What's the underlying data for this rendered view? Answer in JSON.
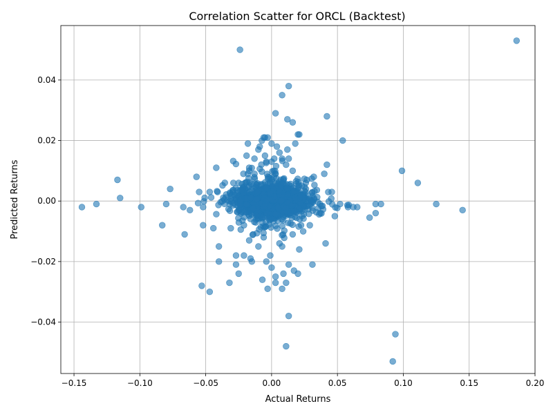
{
  "chart_data": {
    "type": "scatter",
    "title": "Correlation Scatter for ORCL (Backtest)",
    "xlabel": "Actual Returns",
    "ylabel": "Predicted Returns",
    "xlim": [
      -0.16,
      0.2
    ],
    "ylim": [
      -0.057,
      0.058
    ],
    "grid": true,
    "marker_color": "#1f77b4",
    "marker_alpha": 0.6,
    "x_ticks": [
      {
        "value": -0.15,
        "label": "−0.15"
      },
      {
        "value": -0.1,
        "label": "−0.10"
      },
      {
        "value": -0.05,
        "label": "−0.05"
      },
      {
        "value": 0.0,
        "label": "0.00"
      },
      {
        "value": 0.05,
        "label": "0.05"
      },
      {
        "value": 0.1,
        "label": "0.10"
      },
      {
        "value": 0.15,
        "label": "0.15"
      },
      {
        "value": 0.2,
        "label": "0.20"
      }
    ],
    "y_ticks": [
      {
        "value": -0.04,
        "label": "−0.04"
      },
      {
        "value": -0.02,
        "label": "−0.02"
      },
      {
        "value": 0.0,
        "label": "0.00"
      },
      {
        "value": 0.02,
        "label": "0.02"
      },
      {
        "value": 0.04,
        "label": "0.04"
      }
    ],
    "points": [
      [
        -0.024,
        0.05
      ],
      [
        0.186,
        0.053
      ],
      [
        0.013,
        0.038
      ],
      [
        0.008,
        0.035
      ],
      [
        0.003,
        0.029
      ],
      [
        0.042,
        0.028
      ],
      [
        0.012,
        0.027
      ],
      [
        0.016,
        0.026
      ],
      [
        0.02,
        0.022
      ],
      [
        0.021,
        0.022
      ],
      [
        -0.006,
        0.021
      ],
      [
        -0.005,
        0.021
      ],
      [
        -0.003,
        0.021
      ],
      [
        0.054,
        0.02
      ],
      [
        -0.018,
        0.019
      ],
      [
        0.0,
        0.019
      ],
      [
        0.018,
        0.019
      ],
      [
        -0.009,
        0.018
      ],
      [
        -0.01,
        0.017
      ],
      [
        0.004,
        0.018
      ],
      [
        0.006,
        0.016
      ],
      [
        0.012,
        0.017
      ],
      [
        -0.019,
        0.015
      ],
      [
        -0.005,
        0.015
      ],
      [
        0.002,
        0.014
      ],
      [
        0.008,
        0.014
      ],
      [
        0.013,
        0.014
      ],
      [
        -0.013,
        0.014
      ],
      [
        -0.004,
        0.013
      ],
      [
        0.0,
        0.013
      ],
      [
        0.011,
        0.012
      ],
      [
        0.042,
        0.012
      ],
      [
        -0.042,
        0.011
      ],
      [
        -0.017,
        0.011
      ],
      [
        -0.017,
        0.01
      ],
      [
        0.016,
        0.01
      ],
      [
        0.099,
        0.01
      ],
      [
        -0.018,
        0.009
      ],
      [
        -0.013,
        0.009
      ],
      [
        0.04,
        0.009
      ],
      [
        -0.057,
        0.008
      ],
      [
        0.032,
        0.008
      ],
      [
        0.003,
        0.009
      ],
      [
        -0.117,
        0.007
      ],
      [
        0.111,
        0.006
      ],
      [
        -0.029,
        0.006
      ],
      [
        -0.025,
        0.006
      ],
      [
        0.026,
        0.006
      ],
      [
        -0.077,
        0.004
      ],
      [
        -0.041,
        0.003
      ],
      [
        -0.047,
        0.003
      ],
      [
        -0.055,
        0.003
      ],
      [
        -0.115,
        0.001
      ],
      [
        -0.133,
        -0.001
      ],
      [
        -0.144,
        -0.002
      ],
      [
        -0.099,
        -0.002
      ],
      [
        -0.08,
        -0.001
      ],
      [
        -0.067,
        -0.002
      ],
      [
        -0.062,
        -0.003
      ],
      [
        -0.052,
        -0.002
      ],
      [
        0.052,
        -0.001
      ],
      [
        0.058,
        -0.002
      ],
      [
        0.062,
        -0.002
      ],
      [
        0.065,
        -0.002
      ],
      [
        0.079,
        -0.001
      ],
      [
        0.083,
        -0.001
      ],
      [
        0.079,
        -0.004
      ],
      [
        0.125,
        -0.001
      ],
      [
        0.145,
        -0.003
      ],
      [
        0.048,
        -0.005
      ],
      [
        0.037,
        -0.004
      ],
      [
        -0.083,
        -0.008
      ],
      [
        -0.052,
        -0.008
      ],
      [
        -0.066,
        -0.011
      ],
      [
        -0.04,
        -0.015
      ],
      [
        0.041,
        -0.014
      ],
      [
        -0.04,
        -0.02
      ],
      [
        -0.027,
        -0.018
      ],
      [
        -0.021,
        -0.018
      ],
      [
        -0.016,
        -0.019
      ],
      [
        -0.015,
        -0.02
      ],
      [
        -0.004,
        -0.02
      ],
      [
        -0.001,
        -0.018
      ],
      [
        -0.027,
        -0.021
      ],
      [
        0.0,
        -0.022
      ],
      [
        0.013,
        -0.021
      ],
      [
        0.031,
        -0.021
      ],
      [
        -0.025,
        -0.024
      ],
      [
        0.017,
        -0.023
      ],
      [
        0.02,
        -0.024
      ],
      [
        0.009,
        -0.024
      ],
      [
        0.003,
        -0.025
      ],
      [
        -0.007,
        -0.026
      ],
      [
        -0.053,
        -0.028
      ],
      [
        -0.032,
        -0.027
      ],
      [
        0.003,
        -0.027
      ],
      [
        0.011,
        -0.027
      ],
      [
        -0.047,
        -0.03
      ],
      [
        -0.003,
        -0.029
      ],
      [
        0.008,
        -0.029
      ],
      [
        0.013,
        -0.038
      ],
      [
        0.094,
        -0.044
      ],
      [
        0.011,
        -0.048
      ],
      [
        0.092,
        -0.053
      ],
      [
        0.021,
        -0.016
      ],
      [
        -0.01,
        -0.015
      ],
      [
        0.008,
        -0.015
      ],
      [
        0.006,
        -0.014
      ],
      [
        0.016,
        -0.011
      ],
      [
        0.024,
        -0.01
      ],
      [
        0.029,
        -0.008
      ],
      [
        -0.021,
        -0.008
      ],
      [
        -0.031,
        -0.009
      ],
      [
        -0.014,
        -0.011
      ],
      [
        -0.006,
        -0.012
      ],
      [
        -0.017,
        -0.013
      ]
    ]
  }
}
